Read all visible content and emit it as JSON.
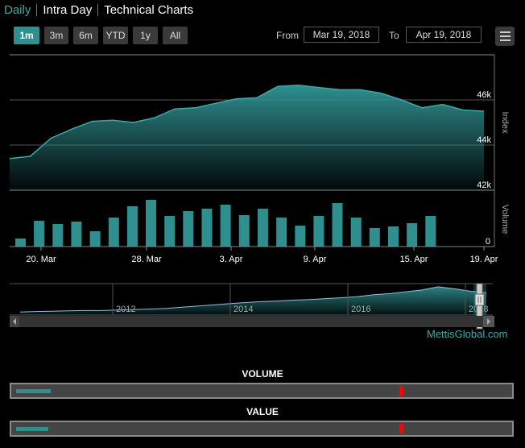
{
  "tabs": [
    {
      "label": "Daily",
      "active": true
    },
    {
      "label": "Intra Day",
      "active": false
    },
    {
      "label": "Technical Charts",
      "active": false
    }
  ],
  "ranges": [
    {
      "label": "1m",
      "selected": true
    },
    {
      "label": "3m",
      "selected": false
    },
    {
      "label": "6m",
      "selected": false
    },
    {
      "label": "YTD",
      "selected": false
    },
    {
      "label": "1y",
      "selected": false
    },
    {
      "label": "All",
      "selected": false
    }
  ],
  "date_range": {
    "from_label": "From",
    "from_value": "Mar 19, 2018",
    "to_label": "To",
    "to_value": "Apr 19, 2018"
  },
  "chart_data": [
    {
      "type": "area",
      "ylabel": "Index",
      "ylim": [
        42000,
        48000
      ],
      "y_ticks": [
        {
          "value": 42000,
          "label": "42k"
        },
        {
          "value": 44000,
          "label": "44k"
        },
        {
          "value": 46000,
          "label": "46k"
        }
      ],
      "x_ticks": [
        "20. Mar",
        "28. Mar",
        "3. Apr",
        "9. Apr",
        "15. Apr",
        "19. Apr"
      ],
      "values": [
        43400,
        43500,
        44300,
        44700,
        45050,
        45100,
        45000,
        45200,
        45600,
        45650,
        45850,
        46050,
        46100,
        46600,
        46650,
        46550,
        46450,
        46450,
        46300,
        46000,
        45650,
        45800,
        45550,
        45500
      ]
    },
    {
      "type": "bar",
      "ylabel": "Volume",
      "y_ticks": [
        {
          "value": 0,
          "label": "0"
        }
      ],
      "values": [
        10,
        32,
        28,
        31,
        19,
        36,
        50,
        58,
        38,
        44,
        47,
        52,
        39,
        47,
        36,
        26,
        38,
        54,
        36,
        23,
        25,
        29,
        38
      ]
    },
    {
      "type": "area",
      "name": "navigator",
      "x_ticks": [
        "2012",
        "2014",
        "2016",
        "2018"
      ],
      "values": [
        0.1,
        0.12,
        0.13,
        0.14,
        0.15,
        0.15,
        0.17,
        0.18,
        0.2,
        0.22,
        0.26,
        0.3,
        0.34,
        0.38,
        0.42,
        0.45,
        0.47,
        0.5,
        0.52,
        0.55,
        0.58,
        0.62,
        0.68,
        0.72,
        0.78,
        0.84,
        0.95,
        0.88,
        0.8,
        0.75
      ]
    }
  ],
  "brand": "MettisGlobal.com",
  "progress": [
    {
      "title": "VOLUME",
      "fill_fraction": 0.07,
      "marker_fraction": 0.79
    },
    {
      "title": "VALUE",
      "fill_fraction": 0.065,
      "marker_fraction": 0.79
    }
  ],
  "colors": {
    "accent": "#2f8f8f",
    "marker": "#e01010"
  }
}
